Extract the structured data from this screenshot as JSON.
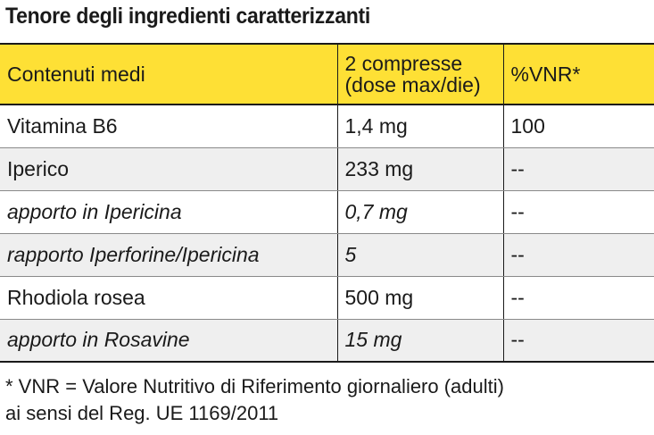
{
  "title": "Tenore degli ingredienti caratterizzanti",
  "table": {
    "headers": [
      "Contenuti medi",
      "2 compresse\n(dose max/die)",
      "%VNR*"
    ],
    "rows": [
      {
        "ingredient": "Vitamina B6",
        "amount": "1,4 mg",
        "vnr": "100",
        "italic": false
      },
      {
        "ingredient": "Iperico",
        "amount": "233 mg",
        "vnr": "--",
        "italic": false
      },
      {
        "ingredient": "apporto in Ipericina",
        "amount": "0,7 mg",
        "vnr": "--",
        "italic": true
      },
      {
        "ingredient": "rapporto Iperforine/Ipericina",
        "amount": "5",
        "vnr": "--",
        "italic": true
      },
      {
        "ingredient": "Rhodiola rosea",
        "amount": "500 mg",
        "vnr": "--",
        "italic": false
      },
      {
        "ingredient": "apporto in Rosavine",
        "amount": "15 mg",
        "vnr": "--",
        "italic": true
      }
    ]
  },
  "footnote": {
    "line1": "* VNR = Valore Nutritivo di Riferimento giornaliero (adulti)",
    "line2": "ai sensi del Reg. UE 1169/2011"
  },
  "colors": {
    "header_bg": "#fee035",
    "alt_row_bg": "#efefef"
  }
}
